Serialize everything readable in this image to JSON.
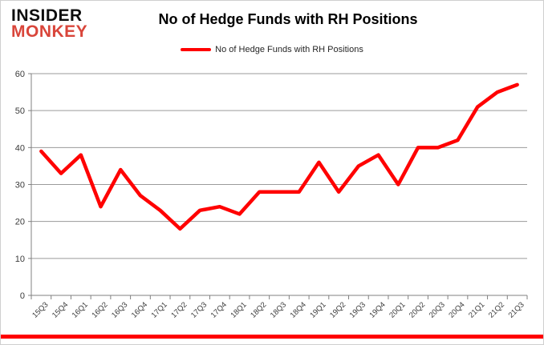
{
  "brand": {
    "line1": "INSIDER",
    "line2": "MONKEY",
    "color": "#d9453a"
  },
  "title": "No of Hedge Funds with RH Positions",
  "legend": {
    "label": "No of Hedge Funds with RH Positions",
    "color": "#ff0000"
  },
  "chart_data": {
    "type": "line",
    "title": "No of Hedge Funds with RH Positions",
    "categories": [
      "15Q3",
      "15Q4",
      "16Q1",
      "16Q2",
      "16Q3",
      "16Q4",
      "17Q1",
      "17Q2",
      "17Q3",
      "17Q4",
      "18Q1",
      "18Q2",
      "18Q3",
      "18Q4",
      "19Q1",
      "19Q2",
      "19Q3",
      "19Q4",
      "20Q1",
      "20Q2",
      "20Q3",
      "20Q4",
      "21Q1",
      "21Q2",
      "21Q3"
    ],
    "series": [
      {
        "name": "No of Hedge Funds with RH Positions",
        "color": "#ff0000",
        "values": [
          39,
          33,
          38,
          24,
          34,
          27,
          23,
          18,
          23,
          24,
          22,
          28,
          28,
          28,
          36,
          28,
          35,
          38,
          30,
          40,
          40,
          42,
          51,
          55,
          57
        ]
      }
    ],
    "xlabel": "",
    "ylabel": "",
    "ylim": [
      0,
      60
    ],
    "yticks": [
      0,
      10,
      20,
      30,
      40,
      50,
      60
    ],
    "grid": "horizontal",
    "legend_position": "top",
    "colors": {
      "line": "#ff0000",
      "gridline": "#9a9a9a",
      "axis": "#808080",
      "tick_label": "#3b3b3b",
      "accent_bar": "#ff0000"
    }
  }
}
